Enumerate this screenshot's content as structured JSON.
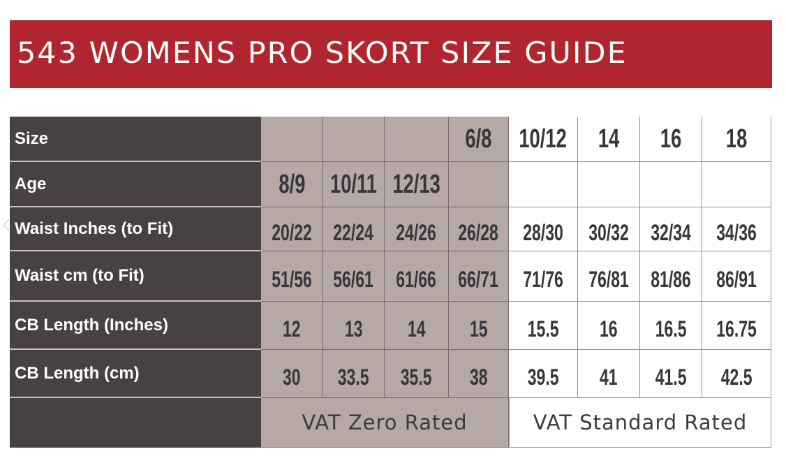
{
  "title": "543 WOMENS PRO SKORT SIZE GUIDE",
  "colors": {
    "banner": "#b0252e",
    "label_bg": "#474142",
    "zero_rated_bg": "#b5a8a5",
    "standard_bg": "#ffffff"
  },
  "carousel_prev_icon": "chevron-left-icon",
  "rows": [
    {
      "label": "Size",
      "values": [
        "",
        "",
        "",
        "6/8",
        "10/12",
        "14",
        "16",
        "18"
      ]
    },
    {
      "label": "Age",
      "values": [
        "8/9",
        "10/11",
        "12/13",
        "",
        "",
        "",
        "",
        ""
      ]
    },
    {
      "label": "Waist Inches (to Fit)",
      "values": [
        "20/22",
        "22/24",
        "24/26",
        "26/28",
        "28/30",
        "30/32",
        "32/34",
        "34/36"
      ]
    },
    {
      "label": "Waist cm (to Fit)",
      "values": [
        "51/56",
        "56/61",
        "61/66",
        "66/71",
        "71/76",
        "76/81",
        "81/86",
        "86/91"
      ]
    },
    {
      "label": "CB Length (Inches)",
      "values": [
        "12",
        "13",
        "14",
        "15",
        "15.5",
        "16",
        "16.5",
        "16.75"
      ]
    },
    {
      "label": "CB Length (cm)",
      "values": [
        "30",
        "33.5",
        "35.5",
        "38",
        "39.5",
        "41",
        "41.5",
        "42.5"
      ]
    }
  ],
  "footer": {
    "zero_rated": "VAT Zero Rated",
    "standard_rated": "VAT Standard Rated"
  }
}
